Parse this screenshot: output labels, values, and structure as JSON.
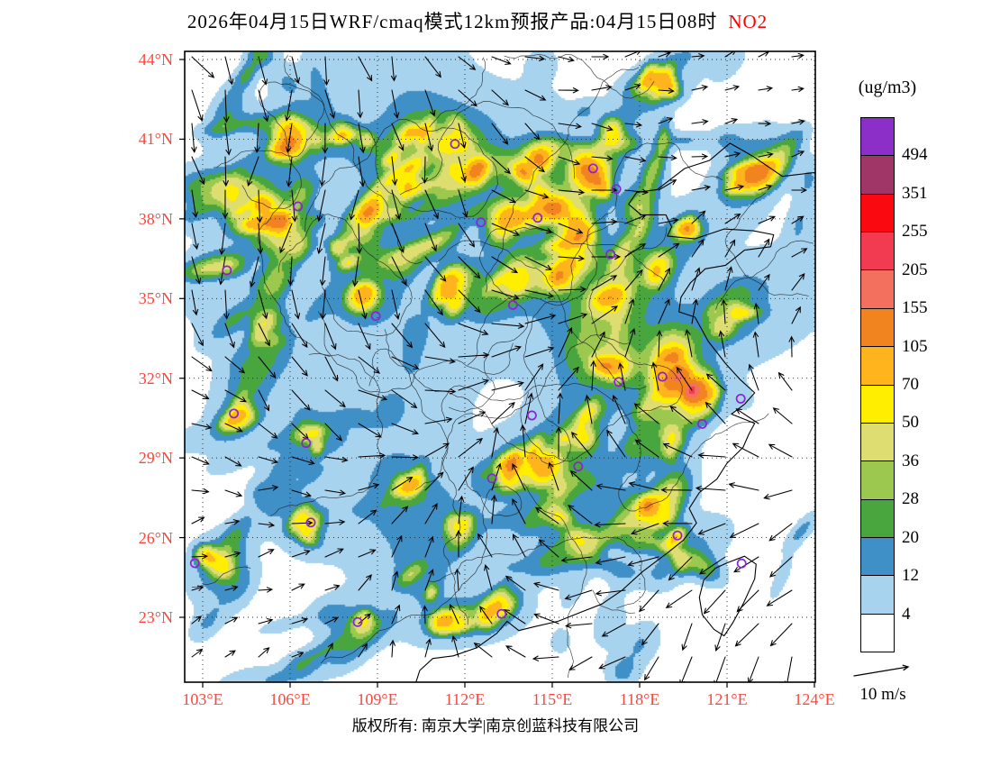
{
  "title": {
    "prefix": "2026年04月15日WRF/cmaq模式12km预报产品:04月15日08时",
    "species": "NO2",
    "species_color": "#FF0000"
  },
  "axes": {
    "x_tick_labels": [
      "103°E",
      "106°E",
      "109°E",
      "112°E",
      "115°E",
      "118°E",
      "121°E",
      "124°E"
    ],
    "y_tick_labels": [
      "44°N",
      "41°N",
      "38°N",
      "35°N",
      "32°N",
      "29°N",
      "26°N",
      "23°N"
    ],
    "tick_label_color": "#F8473C"
  },
  "colorbar": {
    "unit_label": "(ug/m3)",
    "tick_values": [
      "494",
      "351",
      "255",
      "205",
      "155",
      "105",
      "70",
      "50",
      "36",
      "28",
      "20",
      "12",
      "4"
    ],
    "cell_colors_top_to_bottom": [
      "#8B2FC8",
      "#A03568",
      "#FA0A10",
      "#F23B50",
      "#F2705D",
      "#F2841F",
      "#FFB41E",
      "#FFEE00",
      "#DDDD71",
      "#9DC84F",
      "#49A63E",
      "#4090C8",
      "#A8D3EF",
      "#FFFFFF"
    ]
  },
  "wind_legend": {
    "label": "10 m/s"
  },
  "footer": {
    "text": "版权所有: 南京大学|南京创蓝科技有限公司"
  },
  "chart_data": {
    "type": "heatmap",
    "title": "2026年04月15日WRF/cmaq模式12km预报产品:04月15日08时 NO2",
    "variable": "NO2 near-surface concentration forecast",
    "unit": "ug/m3",
    "model": "WRF/cmaq 12km",
    "valid_time_label": "04月15日08时",
    "x_axis": {
      "label_type": "longitude",
      "ticks_deg_e": [
        103,
        106,
        109,
        112,
        115,
        118,
        121,
        124
      ]
    },
    "y_axis": {
      "label_type": "latitude",
      "ticks_deg_n": [
        23,
        26,
        29,
        32,
        35,
        38,
        41,
        44
      ]
    },
    "contour_levels_ug_m3": [
      4,
      12,
      20,
      28,
      36,
      50,
      70,
      105,
      155,
      205,
      255,
      351,
      494
    ],
    "palette_low_to_high": [
      "#FFFFFF",
      "#A8D3EF",
      "#4090C8",
      "#49A63E",
      "#9DC84F",
      "#DDDD71",
      "#FFEE00",
      "#FFB41E",
      "#F2841F",
      "#F2705D",
      "#F23B50",
      "#FA0A10",
      "#A03568",
      "#8B2FC8"
    ],
    "overlay": "wind vectors (arrows), reference 10 m/s",
    "wind_vector_reference_m_s": 10,
    "station_markers_lon_lat": [
      [
        111.66,
        40.82
      ],
      [
        116.4,
        39.9
      ],
      [
        117.2,
        39.12
      ],
      [
        114.5,
        38.04
      ],
      [
        112.55,
        37.87
      ],
      [
        117.0,
        36.67
      ],
      [
        106.27,
        38.47
      ],
      [
        103.83,
        36.06
      ],
      [
        108.94,
        34.34
      ],
      [
        113.65,
        34.76
      ],
      [
        117.28,
        31.86
      ],
      [
        118.78,
        32.06
      ],
      [
        121.47,
        31.23
      ],
      [
        114.3,
        30.6
      ],
      [
        104.07,
        30.67
      ],
      [
        106.55,
        29.56
      ],
      [
        112.93,
        28.23
      ],
      [
        115.89,
        28.68
      ],
      [
        120.15,
        30.28
      ],
      [
        106.71,
        26.57
      ],
      [
        119.3,
        26.08
      ],
      [
        113.26,
        23.13
      ],
      [
        108.32,
        22.82
      ],
      [
        121.5,
        25.03
      ],
      [
        102.73,
        25.04
      ]
    ]
  }
}
